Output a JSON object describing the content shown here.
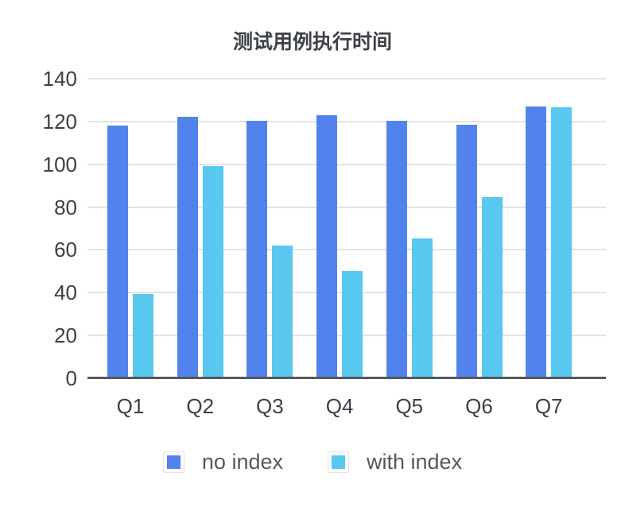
{
  "chart_data": {
    "type": "bar",
    "title": "测试用例执行时间",
    "categories": [
      "Q1",
      "Q2",
      "Q3",
      "Q4",
      "Q5",
      "Q6",
      "Q7"
    ],
    "series": [
      {
        "name": "no index",
        "color": "#5283EC",
        "values": [
          118,
          122,
          120.5,
          123,
          120.5,
          118.5,
          127
        ]
      },
      {
        "name": "with index",
        "color": "#58C8EF",
        "values": [
          39.5,
          99,
          62,
          50,
          65.5,
          84.5,
          126.5
        ]
      }
    ],
    "xlabel": "",
    "ylabel": "",
    "ylim": [
      0,
      140
    ],
    "yticks": [
      0,
      20,
      40,
      60,
      80,
      100,
      120,
      140
    ],
    "grid": true,
    "legend_position": "bottom",
    "colors": {
      "gridline": "#E2E3E5",
      "axis_line": "#55585F",
      "tick_label": "#3B3F46",
      "legend_text": "#55585E",
      "title_text": "#3E4247",
      "background": "#FFFFFF"
    }
  }
}
